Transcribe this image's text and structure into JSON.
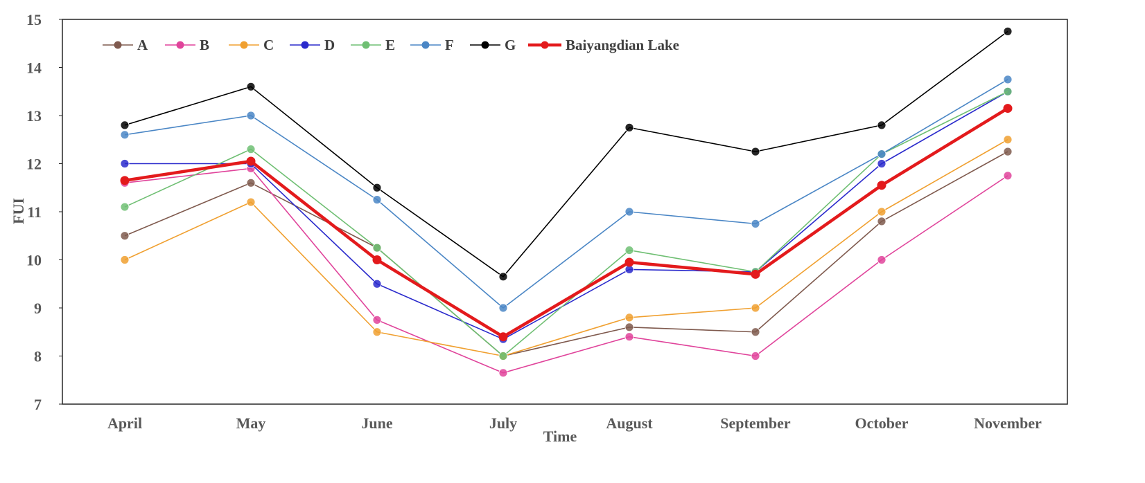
{
  "chart_data": {
    "type": "line",
    "title": "",
    "xlabel": "Time",
    "ylabel": "FUI",
    "ylim": [
      7,
      15
    ],
    "yticks": [
      "7",
      "8",
      "9",
      "10",
      "11",
      "12",
      "13",
      "14",
      "15"
    ],
    "categories": [
      "April",
      "May",
      "June",
      "July",
      "August",
      "September",
      "October",
      "November"
    ],
    "legend_position": "top-left",
    "series": [
      {
        "name": "A",
        "color": "#7f5a4e",
        "values": [
          10.5,
          11.6,
          10.25,
          8.0,
          8.6,
          8.5,
          10.8,
          12.25
        ]
      },
      {
        "name": "B",
        "color": "#e0449b",
        "values": [
          11.6,
          11.9,
          8.75,
          7.65,
          8.4,
          8.0,
          10.0,
          11.75
        ]
      },
      {
        "name": "C",
        "color": "#f0a030",
        "values": [
          10.0,
          11.2,
          8.5,
          8.0,
          8.8,
          9.0,
          11.0,
          12.5
        ]
      },
      {
        "name": "D",
        "color": "#2a2acc",
        "values": [
          12.0,
          12.0,
          9.5,
          8.35,
          9.8,
          9.75,
          12.0,
          13.5
        ]
      },
      {
        "name": "E",
        "color": "#6fbf73",
        "values": [
          11.1,
          12.3,
          10.25,
          8.0,
          10.2,
          9.75,
          12.2,
          13.5
        ]
      },
      {
        "name": "F",
        "color": "#4a86c5",
        "values": [
          12.6,
          13.0,
          11.25,
          9.0,
          11.0,
          10.75,
          12.2,
          13.75
        ]
      },
      {
        "name": "G",
        "color": "#000000",
        "values": [
          12.8,
          13.6,
          11.5,
          9.65,
          12.75,
          12.25,
          12.8,
          14.75
        ]
      },
      {
        "name": "Baiyangdian Lake",
        "color": "#e31a1c",
        "values": [
          11.65,
          12.05,
          10.0,
          8.4,
          9.95,
          9.7,
          11.55,
          13.15
        ],
        "bold": true
      }
    ]
  }
}
